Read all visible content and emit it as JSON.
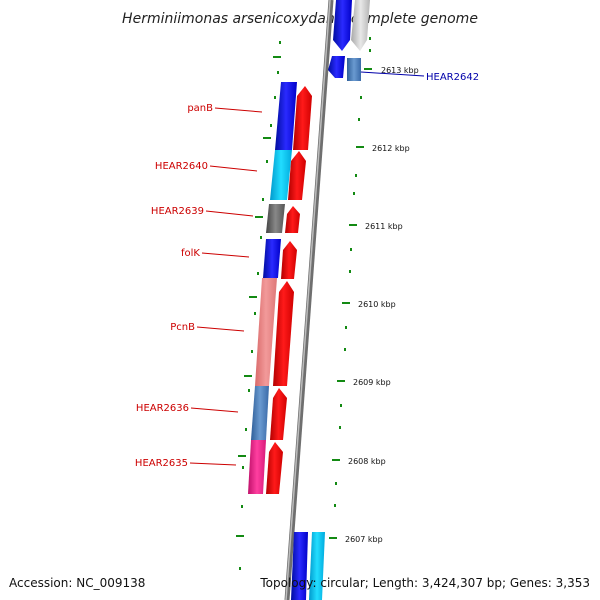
{
  "title": "Herminiimonas arsenicoxydans, complete genome",
  "footer": {
    "accession": "Accession: NC_009138",
    "topology": "Topology: circular; Length: 3,424,307 bp; Genes: 3,353"
  },
  "colors": {
    "gene_label": "#cc0000",
    "highlight_label": "#0000aa",
    "tick": "#138a13",
    "backbone": "#8a8a8a"
  },
  "ruler_labels": [
    "2613 kbp",
    "2612 kbp",
    "2611 kbp",
    "2610 kbp",
    "2609 kbp",
    "2608 kbp",
    "2607 kbp"
  ],
  "gene_labels": [
    "panB",
    "HEAR2640",
    "HEAR2639",
    "folK",
    "PcnB",
    "HEAR2636",
    "HEAR2635",
    "HEAR2642"
  ]
}
